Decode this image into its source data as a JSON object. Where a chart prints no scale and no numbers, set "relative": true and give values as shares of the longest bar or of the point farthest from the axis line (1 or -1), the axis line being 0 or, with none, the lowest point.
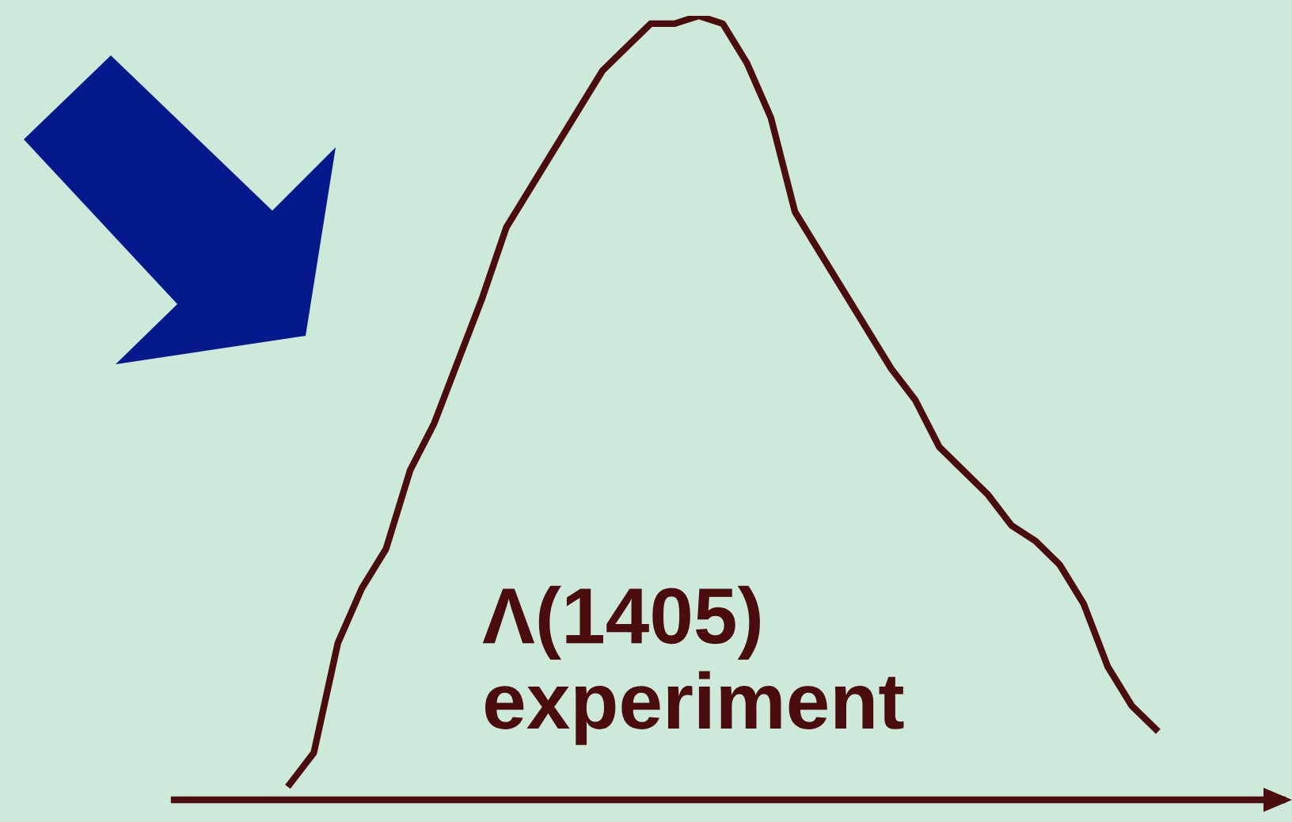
{
  "chart_data": {
    "type": "line",
    "relative": true,
    "color": "#4a0c0c",
    "grid": false,
    "legend": false,
    "categories": [
      null,
      null,
      null,
      null,
      null,
      null,
      null,
      null,
      null,
      null,
      null,
      null,
      null,
      null,
      null,
      null,
      null,
      null,
      null,
      null,
      null,
      null,
      null,
      null,
      null,
      null,
      null,
      null,
      null,
      null,
      null,
      null,
      null,
      null,
      null,
      null,
      null
    ],
    "values": [
      0.02,
      0.06,
      0.2,
      0.27,
      0.32,
      0.42,
      0.48,
      0.56,
      0.64,
      0.73,
      0.78,
      0.83,
      0.88,
      0.93,
      0.96,
      0.99,
      0.99,
      1.0,
      0.99,
      0.94,
      0.87,
      0.75,
      0.7,
      0.65,
      0.6,
      0.55,
      0.51,
      0.45,
      0.42,
      0.39,
      0.35,
      0.33,
      0.3,
      0.25,
      0.17,
      0.12,
      0.09
    ],
    "annotations": [
      "Λ(1405)\nexperiment"
    ]
  }
}
